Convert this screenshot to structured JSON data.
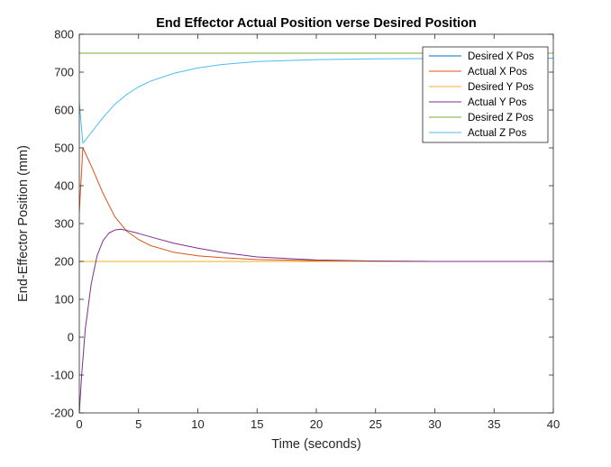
{
  "chart_data": {
    "type": "line",
    "title": "End Effector Actual Position verse Desired Position",
    "xlabel": "Time (seconds)",
    "ylabel": "End-Effector Position (mm)",
    "xlim": [
      0,
      40
    ],
    "ylim": [
      -200,
      800
    ],
    "xticks": [
      0,
      5,
      10,
      15,
      20,
      25,
      30,
      35,
      40
    ],
    "yticks": [
      -200,
      -100,
      0,
      100,
      200,
      300,
      400,
      500,
      600,
      700,
      800
    ],
    "grid": false,
    "legend_position": "top-right",
    "series": [
      {
        "name": "Desired X Pos",
        "color": "#0072BD",
        "points": [
          [
            0,
            200
          ],
          [
            40,
            200
          ]
        ]
      },
      {
        "name": "Actual X Pos",
        "color": "#D95319",
        "points": [
          [
            0,
            330
          ],
          [
            0.3,
            500
          ],
          [
            1,
            453
          ],
          [
            2,
            380
          ],
          [
            3,
            318
          ],
          [
            4,
            280
          ],
          [
            5,
            258
          ],
          [
            6,
            242
          ],
          [
            8,
            224
          ],
          [
            10,
            215
          ],
          [
            12,
            210
          ],
          [
            15,
            205
          ],
          [
            20,
            202
          ],
          [
            25,
            201
          ],
          [
            30,
            200
          ],
          [
            40,
            200
          ]
        ]
      },
      {
        "name": "Desired Y Pos",
        "color": "#EDB120",
        "points": [
          [
            0,
            200
          ],
          [
            40,
            200
          ]
        ]
      },
      {
        "name": "Actual Y Pos",
        "color": "#7E2F8E",
        "points": [
          [
            0,
            -200
          ],
          [
            0.2,
            -100
          ],
          [
            0.5,
            20
          ],
          [
            1,
            140
          ],
          [
            1.5,
            215
          ],
          [
            2,
            255
          ],
          [
            2.5,
            275
          ],
          [
            3,
            283
          ],
          [
            3.5,
            285
          ],
          [
            4,
            282
          ],
          [
            5,
            274
          ],
          [
            6,
            265
          ],
          [
            8,
            248
          ],
          [
            10,
            235
          ],
          [
            12,
            224
          ],
          [
            15,
            212
          ],
          [
            20,
            204
          ],
          [
            25,
            201
          ],
          [
            30,
            200
          ],
          [
            40,
            200
          ]
        ]
      },
      {
        "name": "Desired Z Pos",
        "color": "#77AC30",
        "points": [
          [
            0,
            750
          ],
          [
            40,
            750
          ]
        ]
      },
      {
        "name": "Actual Z Pos",
        "color": "#4DBEEE",
        "points": [
          [
            0,
            620
          ],
          [
            0.3,
            512
          ],
          [
            1,
            540
          ],
          [
            2,
            580
          ],
          [
            3,
            615
          ],
          [
            4,
            641
          ],
          [
            5,
            661
          ],
          [
            6,
            676
          ],
          [
            8,
            697
          ],
          [
            10,
            711
          ],
          [
            12,
            720
          ],
          [
            15,
            728
          ],
          [
            20,
            733
          ],
          [
            25,
            735
          ],
          [
            30,
            736
          ],
          [
            40,
            737
          ]
        ]
      }
    ]
  }
}
